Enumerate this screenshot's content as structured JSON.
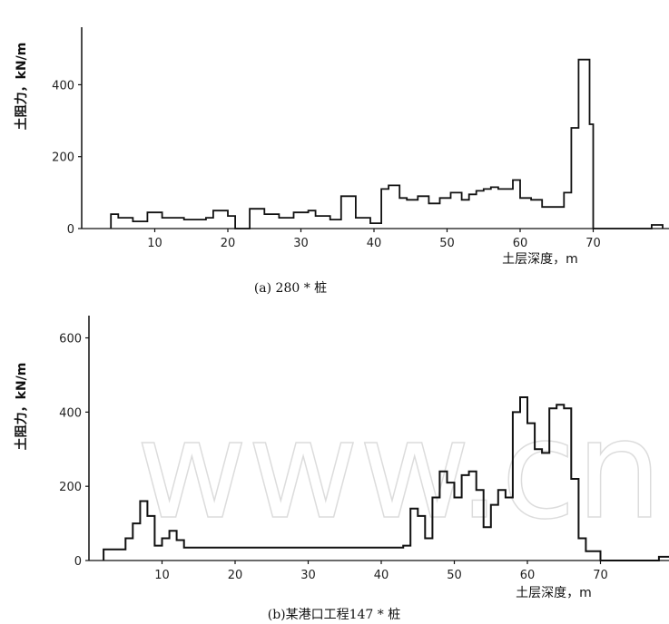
{
  "watermark": "www.cnki.ne",
  "chart_data": [
    {
      "type": "line",
      "step": true,
      "caption": "(a) 280 * 桩",
      "ylabel": "土阻力，kN/m",
      "xlabel": "土层深度，m",
      "xticks": [
        10,
        20,
        30,
        40,
        50,
        60,
        70
      ],
      "yticks": [
        0,
        200,
        400
      ],
      "xlim": [
        0,
        80
      ],
      "ylim": [
        0,
        560
      ],
      "series": [
        {
          "x": [
            4,
            5,
            7,
            9,
            11,
            14,
            17,
            18,
            20,
            21,
            23,
            25,
            27,
            29,
            31,
            32,
            34,
            35.5,
            37.5,
            39.5,
            41,
            42,
            43.5,
            44.5,
            46,
            47.5,
            49,
            50.5,
            52,
            53,
            54,
            55,
            56,
            57,
            59,
            60,
            61.5,
            63,
            66,
            67,
            68,
            69.5,
            70,
            78,
            79.5
          ],
          "y": [
            40,
            30,
            20,
            45,
            30,
            25,
            30,
            50,
            35,
            0,
            55,
            40,
            30,
            45,
            50,
            35,
            25,
            90,
            30,
            15,
            110,
            120,
            85,
            80,
            90,
            70,
            85,
            100,
            80,
            95,
            105,
            110,
            115,
            110,
            135,
            85,
            80,
            60,
            100,
            280,
            470,
            290,
            0,
            10,
            0
          ]
        }
      ]
    },
    {
      "type": "line",
      "step": true,
      "caption": "(b)某港口工程147 * 桩",
      "ylabel": "土阻力，kN/m",
      "xlabel": "土层深度，m",
      "xticks": [
        10,
        20,
        30,
        40,
        50,
        60,
        70
      ],
      "yticks": [
        0,
        200,
        400,
        600
      ],
      "xlim": [
        0,
        80
      ],
      "ylim": [
        0,
        660
      ],
      "series": [
        {
          "x": [
            2,
            3,
            5,
            6,
            7,
            8,
            9,
            10,
            11,
            12,
            13,
            43,
            44,
            45,
            46,
            47,
            48,
            49,
            50,
            51,
            52,
            53,
            54,
            55,
            56,
            57,
            58,
            59,
            60,
            61,
            62,
            63,
            64,
            65,
            66,
            67,
            68,
            70,
            78,
            79.5
          ],
          "y": [
            30,
            30,
            60,
            100,
            160,
            120,
            40,
            60,
            80,
            55,
            35,
            40,
            140,
            120,
            60,
            170,
            240,
            210,
            170,
            230,
            240,
            190,
            90,
            150,
            190,
            170,
            400,
            440,
            370,
            300,
            290,
            410,
            420,
            410,
            220,
            60,
            25,
            0,
            10,
            0
          ]
        }
      ]
    }
  ]
}
